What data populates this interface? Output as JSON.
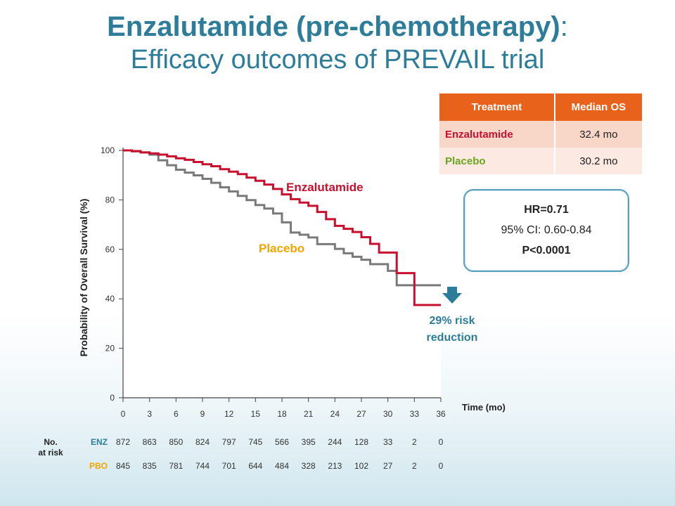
{
  "slide": {
    "title": "Enzalutamide (pre-chemotherapy)",
    "title_colon": ":",
    "subtitle": "Efficacy outcomes of PREVAIL trial"
  },
  "os_table": {
    "headers": [
      "Treatment",
      "Median OS"
    ],
    "rows": [
      {
        "treatment": "Enzalutamide",
        "median": "32.4 mo"
      },
      {
        "treatment": "Placebo",
        "median": "30.2 mo"
      }
    ]
  },
  "hr_box": {
    "hr": "HR=0.71",
    "ci": "95% CI: 0.60-0.84",
    "p": "P<0.0001"
  },
  "annotations": {
    "enz_label": "Enzalutamide",
    "pbo_label": "Placebo",
    "risk_line1": "29% risk",
    "risk_line2": "reduction"
  },
  "colors": {
    "enzalutamide": "#c8102e",
    "placebo": "#7a7a7a",
    "placebo_label": "#f0a500",
    "accent": "#2d7d9a",
    "table_header": "#e8621c"
  },
  "chart_data": {
    "type": "line",
    "xlabel": "Time (mo)",
    "ylabel": "Probability of Overall Survival (%)",
    "xlim": [
      0,
      36
    ],
    "ylim": [
      0,
      100
    ],
    "xticks": [
      0,
      3,
      6,
      9,
      12,
      15,
      18,
      21,
      24,
      27,
      30,
      33,
      36
    ],
    "yticks": [
      0,
      20,
      40,
      60,
      80,
      100
    ],
    "series": [
      {
        "name": "Enzalutamide",
        "x": [
          0,
          1,
          2,
          3,
          4,
          5,
          6,
          7,
          8,
          9,
          10,
          11,
          12,
          13,
          14,
          15,
          16,
          17,
          18,
          19,
          20,
          21,
          22,
          23,
          24,
          25,
          26,
          27,
          28,
          29,
          30,
          31,
          32,
          33,
          34,
          36
        ],
        "y": [
          100,
          99.7,
          99.2,
          98.8,
          98.3,
          97.6,
          96.8,
          96.2,
          95.3,
          94.4,
          93.6,
          92.4,
          91.4,
          90.4,
          89.0,
          87.7,
          86.2,
          84.4,
          82.2,
          80.3,
          78.9,
          77.6,
          75.1,
          72.2,
          69.5,
          68.3,
          67.0,
          64.9,
          62.2,
          58.7,
          58.7,
          50.4,
          50.4,
          37.5,
          37.5,
          37.5
        ]
      },
      {
        "name": "Placebo",
        "x": [
          0,
          1,
          2,
          3,
          4,
          5,
          6,
          7,
          8,
          9,
          10,
          11,
          12,
          13,
          14,
          15,
          16,
          17,
          18,
          19,
          20,
          21,
          22,
          23,
          24,
          25,
          26,
          27,
          28,
          29,
          30,
          31,
          32,
          33,
          34,
          36
        ],
        "y": [
          100,
          99.6,
          99.2,
          98.3,
          96.0,
          94.0,
          92.2,
          91.0,
          89.9,
          88.5,
          86.9,
          85.1,
          83.4,
          81.6,
          79.9,
          77.9,
          76.5,
          74.5,
          70.9,
          66.8,
          65.9,
          64.8,
          62.1,
          62.1,
          60.2,
          58.4,
          57.0,
          55.8,
          54.0,
          54.0,
          51.3,
          45.5,
          45.5,
          45.5,
          45.5,
          45.5
        ]
      }
    ],
    "risk_table": {
      "title_line1": "No.",
      "title_line2": "at risk",
      "rows": [
        {
          "label": "ENZ",
          "values": [
            "872",
            "863",
            "850",
            "824",
            "797",
            "745",
            "566",
            "395",
            "244",
            "128",
            "33",
            "2",
            "0"
          ]
        },
        {
          "label": "PBO",
          "values": [
            "845",
            "835",
            "781",
            "744",
            "701",
            "644",
            "484",
            "328",
            "213",
            "102",
            "27",
            "2",
            "0"
          ]
        }
      ]
    }
  }
}
